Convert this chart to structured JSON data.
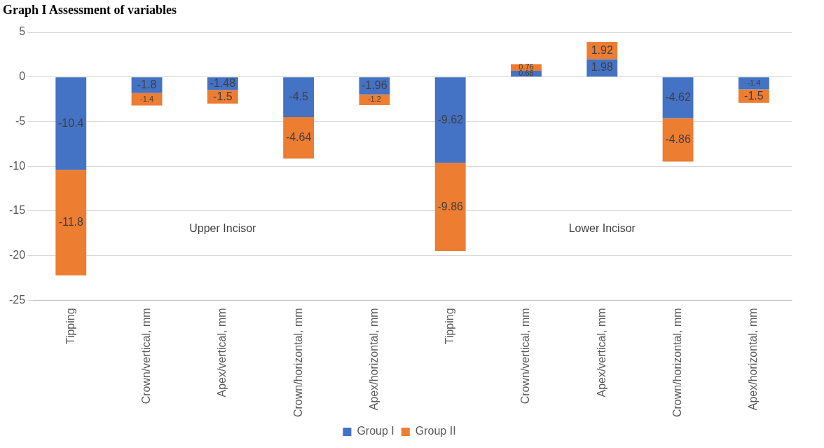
{
  "chart_data": {
    "type": "bar",
    "title": "Graph I Assessment of variables",
    "categories": [
      "Tipping",
      "Crown/vertical, mm",
      "Apex/vertical, mm",
      "Crown/horizontal, mm",
      "Apex/horizontal, mm",
      "Tipping",
      "Crown/vertical, mm",
      "Apex/vertical, mm",
      "Crown/horizontal, mm",
      "Apex/horizontal, mm"
    ],
    "series": [
      {
        "name": "Group I",
        "color": "#4472c4",
        "values": [
          -10.4,
          -1.8,
          -1.48,
          -4.5,
          -1.96,
          -9.62,
          0.68,
          1.98,
          -4.62,
          -1.4
        ]
      },
      {
        "name": "Group II",
        "color": "#ed7d31",
        "values": [
          -11.8,
          -1.4,
          -1.5,
          -4.64,
          -1.2,
          -9.86,
          0.76,
          1.92,
          -4.86,
          -1.5
        ]
      }
    ],
    "stacked": true,
    "data_labels": true,
    "ylim": [
      -25,
      5
    ],
    "yticks": [
      -25,
      -20,
      -15,
      -10,
      -5,
      0,
      5
    ],
    "grid": "y",
    "legend": "bottom",
    "annotations": [
      "Upper Incisor",
      "Lower Incisor"
    ]
  }
}
